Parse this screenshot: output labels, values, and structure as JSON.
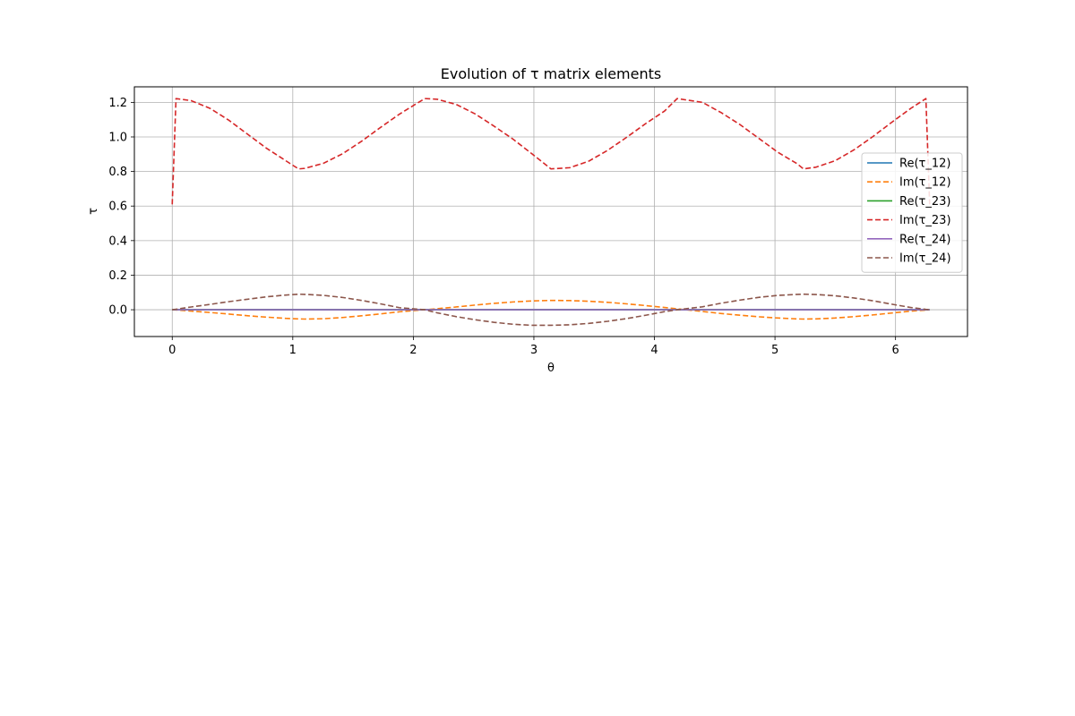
{
  "chart_data": {
    "type": "line",
    "title": "Evolution of τ matrix elements",
    "xlabel": "θ",
    "ylabel": "τ",
    "xlim": [
      -0.314,
      6.597
    ],
    "ylim": [
      -0.155,
      1.29
    ],
    "xticks": [
      0,
      1,
      2,
      3,
      4,
      5,
      6
    ],
    "xtick_labels": [
      "0",
      "1",
      "2",
      "3",
      "4",
      "5",
      "6"
    ],
    "yticks": [
      0.0,
      0.2,
      0.4,
      0.6,
      0.8,
      1.0,
      1.2
    ],
    "ytick_labels": [
      "0.0",
      "0.2",
      "0.4",
      "0.6",
      "0.8",
      "1.0",
      "1.2"
    ],
    "grid": true,
    "legend_position": "right",
    "x": [
      0,
      0.0314,
      0.1571,
      0.3142,
      0.4712,
      0.6283,
      0.7854,
      0.9425,
      1.0472,
      1.0996,
      1.2566,
      1.4137,
      1.5708,
      1.7279,
      1.885,
      2.0944,
      2.1991,
      2.3562,
      2.5133,
      2.6704,
      2.8274,
      2.9845,
      3.1416,
      3.2987,
      3.4558,
      3.6128,
      3.7699,
      3.927,
      4.0841,
      4.1888,
      4.3982,
      4.5553,
      4.7124,
      4.8695,
      5.0265,
      5.1836,
      5.236,
      5.3407,
      5.4978,
      5.6549,
      5.8119,
      5.969,
      6.1261,
      6.2518,
      6.2832
    ],
    "series": [
      {
        "name": "Re(τ_12)",
        "color": "#1f77b4",
        "dash": "solid",
        "values": [
          0,
          0,
          0,
          0,
          0,
          0,
          0,
          0,
          0,
          0,
          0,
          0,
          0,
          0,
          0,
          0,
          0,
          0,
          0,
          0,
          0,
          0,
          0,
          0,
          0,
          0,
          0,
          0,
          0,
          0,
          0,
          0,
          0,
          0,
          0,
          0,
          0,
          0,
          0,
          0,
          0,
          0,
          0,
          0,
          0
        ]
      },
      {
        "name": "Im(τ_12)",
        "color": "#ff7f0e",
        "dash": "dashed",
        "values": [
          0,
          -0.001,
          -0.008,
          -0.016,
          -0.025,
          -0.035,
          -0.043,
          -0.05,
          -0.053,
          -0.054,
          -0.052,
          -0.045,
          -0.035,
          -0.024,
          -0.012,
          0,
          0.006,
          0.016,
          0.027,
          0.037,
          0.045,
          0.051,
          0.054,
          0.053,
          0.049,
          0.043,
          0.034,
          0.024,
          0.013,
          0.005,
          -0.01,
          -0.022,
          -0.032,
          -0.041,
          -0.048,
          -0.053,
          -0.054,
          -0.053,
          -0.048,
          -0.04,
          -0.03,
          -0.019,
          -0.008,
          -0.002,
          0
        ]
      },
      {
        "name": "Re(τ_23)",
        "color": "#2ca02c",
        "dash": "solid",
        "values": [
          0,
          0,
          0,
          0,
          0,
          0,
          0,
          0,
          0,
          0,
          0,
          0,
          0,
          0,
          0,
          0,
          0,
          0,
          0,
          0,
          0,
          0,
          0,
          0,
          0,
          0,
          0,
          0,
          0,
          0,
          0,
          0,
          0,
          0,
          0,
          0,
          0,
          0,
          0,
          0,
          0,
          0,
          0,
          0,
          0
        ]
      },
      {
        "name": "Im(τ_23)",
        "color": "#d62728",
        "dash": "dashed",
        "values": [
          0.61,
          1.222,
          1.21,
          1.165,
          1.096,
          1.014,
          0.933,
          0.862,
          0.815,
          0.818,
          0.848,
          0.903,
          0.975,
          1.055,
          1.132,
          1.222,
          1.218,
          1.188,
          1.133,
          1.062,
          0.987,
          0.902,
          0.815,
          0.822,
          0.86,
          0.923,
          0.998,
          1.077,
          1.15,
          1.222,
          1.2,
          1.14,
          1.07,
          0.99,
          0.91,
          0.845,
          0.815,
          0.825,
          0.862,
          0.925,
          1.002,
          1.085,
          1.165,
          1.222,
          0.61
        ]
      },
      {
        "name": "Re(τ_24)",
        "color": "#9467bd",
        "dash": "solid",
        "values": [
          0,
          0,
          0,
          0,
          0,
          0,
          0,
          0,
          0,
          0,
          0,
          0,
          0,
          0,
          0,
          0,
          0,
          0,
          0,
          0,
          0,
          0,
          0,
          0,
          0,
          0,
          0,
          0,
          0,
          0,
          0,
          0,
          0,
          0,
          0,
          0,
          0,
          0,
          0,
          0,
          0,
          0,
          0,
          0,
          0
        ]
      },
      {
        "name": "Im(τ_24)",
        "color": "#8c564b",
        "dash": "dashed",
        "values": [
          0,
          0.003,
          0.016,
          0.031,
          0.047,
          0.061,
          0.075,
          0.085,
          0.09,
          0.089,
          0.083,
          0.071,
          0.054,
          0.034,
          0.012,
          0,
          -0.018,
          -0.04,
          -0.058,
          -0.073,
          -0.084,
          -0.09,
          -0.09,
          -0.087,
          -0.079,
          -0.067,
          -0.051,
          -0.032,
          -0.011,
          0,
          0.017,
          0.038,
          0.056,
          0.072,
          0.083,
          0.089,
          0.09,
          0.088,
          0.081,
          0.068,
          0.052,
          0.032,
          0.013,
          0.002,
          0
        ]
      }
    ]
  }
}
